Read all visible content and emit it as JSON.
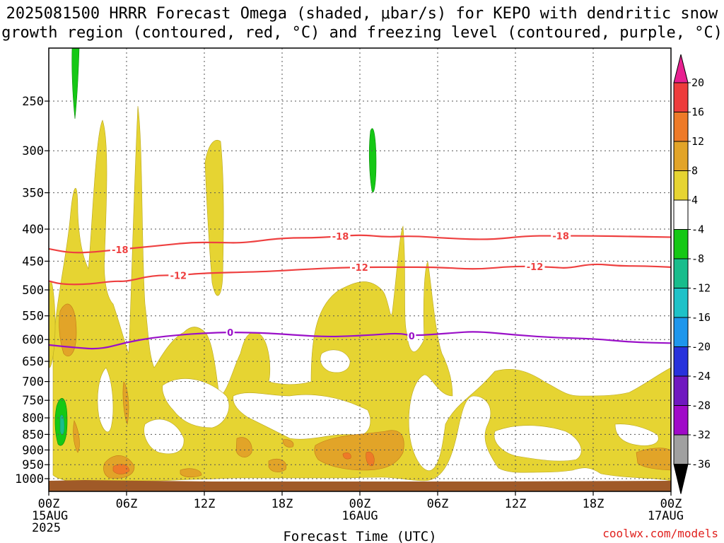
{
  "chart_data": {
    "type": "heatmap",
    "title": "2025081500 HRRR Forecast Omega (shaded, μbar/s) for KEPO with dendritic snow growth region (contoured, red, °C) and freezing level (contoured, purple, °C)",
    "title_lines": [
      "2025081500 HRRR Forecast Omega (shaded, μbar/s) for KEPO with dendritic snow",
      "growth region (contoured, red, °C) and freezing level (contoured, purple, °C)"
    ],
    "xlabel": "Forecast Time (UTC)",
    "ylabel": "",
    "x_range_hours": [
      0,
      48
    ],
    "y_scale": "log",
    "y_range_mb": [
      1050,
      195
    ],
    "x_ticks": [
      {
        "hour": 0,
        "lines": [
          "00Z",
          "15AUG",
          "2025"
        ]
      },
      {
        "hour": 6,
        "lines": [
          "06Z"
        ]
      },
      {
        "hour": 12,
        "lines": [
          "12Z"
        ]
      },
      {
        "hour": 18,
        "lines": [
          "18Z"
        ]
      },
      {
        "hour": 24,
        "lines": [
          "00Z",
          "16AUG"
        ]
      },
      {
        "hour": 30,
        "lines": [
          "06Z"
        ]
      },
      {
        "hour": 36,
        "lines": [
          "12Z"
        ]
      },
      {
        "hour": 42,
        "lines": [
          "18Z"
        ]
      },
      {
        "hour": 48,
        "lines": [
          "00Z",
          "17AUG"
        ]
      }
    ],
    "y_ticks": [
      "250",
      "300",
      "350",
      "400",
      "450",
      "500",
      "550",
      "600",
      "650",
      "700",
      "750",
      "800",
      "850",
      "900",
      "950",
      "1000"
    ],
    "grid": true,
    "colorbar": {
      "labels": [
        "20",
        "16",
        "12",
        "8",
        "4",
        "-4",
        "-8",
        "-12",
        "-16",
        "-20",
        "-24",
        "-28",
        "-32",
        "-36"
      ],
      "colors": [
        "#e82090",
        "#ee3c3c",
        "#ee7a28",
        "#e2a428",
        "#e6d432",
        "#ffffff",
        "#15c815",
        "#18bd8c",
        "#1ec2c8",
        "#1e96ec",
        "#2832dc",
        "#7018c0",
        "#a00ac8",
        "#a0a0a0",
        "#000000"
      ]
    },
    "contours": [
      {
        "name": "-18",
        "color": "#ee4040",
        "labels": [
          "18",
          "18",
          "18"
        ],
        "sign": "-",
        "points": [
          [
            0,
            430
          ],
          [
            1.5,
            436
          ],
          [
            3,
            436
          ],
          [
            5,
            432
          ],
          [
            7,
            428
          ],
          [
            9,
            424
          ],
          [
            11,
            420
          ],
          [
            13,
            420
          ],
          [
            15,
            421
          ],
          [
            18,
            413
          ],
          [
            21,
            413
          ],
          [
            24,
            408
          ],
          [
            26,
            412
          ],
          [
            28,
            410
          ],
          [
            31,
            414
          ],
          [
            34,
            416
          ],
          [
            37,
            410
          ],
          [
            39,
            410
          ],
          [
            42,
            410
          ],
          [
            45,
            411
          ],
          [
            48,
            412
          ]
        ]
      },
      {
        "name": "-12",
        "color": "#ee4040",
        "labels": [
          "12",
          "12",
          "12"
        ],
        "sign": "-",
        "points": [
          [
            0,
            484
          ],
          [
            1,
            490
          ],
          [
            3,
            490
          ],
          [
            5,
            484
          ],
          [
            6,
            485
          ],
          [
            8,
            474
          ],
          [
            10,
            474
          ],
          [
            12,
            470
          ],
          [
            16,
            468
          ],
          [
            18,
            466
          ],
          [
            21,
            462
          ],
          [
            24,
            460
          ],
          [
            27,
            460
          ],
          [
            30,
            460
          ],
          [
            33,
            464
          ],
          [
            36,
            458
          ],
          [
            39,
            460
          ],
          [
            40,
            462
          ],
          [
            42,
            454
          ],
          [
            44,
            458
          ],
          [
            46,
            458
          ],
          [
            48,
            460
          ]
        ]
      },
      {
        "name": "0",
        "color": "#9a10c8",
        "labels": [
          "0",
          "0"
        ],
        "sign": "",
        "points": [
          [
            0,
            612
          ],
          [
            2,
            618
          ],
          [
            4,
            622
          ],
          [
            6,
            606
          ],
          [
            8,
            596
          ],
          [
            10,
            590
          ],
          [
            12,
            586
          ],
          [
            14,
            584
          ],
          [
            17,
            586
          ],
          [
            20,
            592
          ],
          [
            22,
            594
          ],
          [
            25,
            590
          ],
          [
            27,
            586
          ],
          [
            28,
            592
          ],
          [
            31,
            586
          ],
          [
            33,
            582
          ],
          [
            36,
            590
          ],
          [
            39,
            596
          ],
          [
            42,
            598
          ],
          [
            45,
            606
          ],
          [
            48,
            608
          ]
        ]
      }
    ]
  },
  "credit": "coolwx.com/models"
}
